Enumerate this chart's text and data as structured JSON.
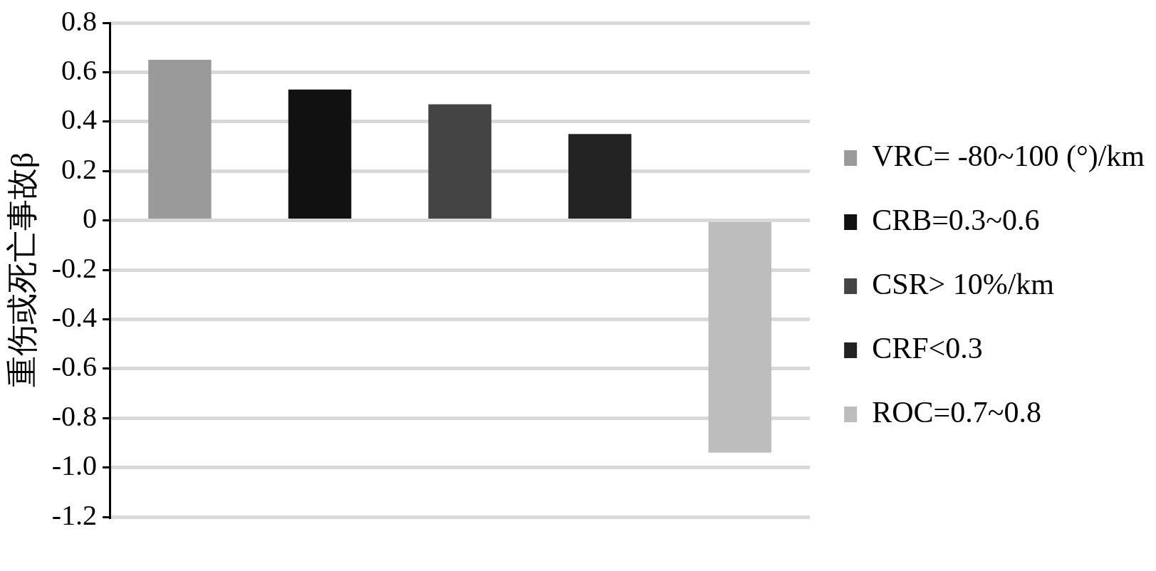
{
  "chart_data": {
    "type": "bar",
    "ylabel": "重伤或死亡事故β",
    "categories": [
      null,
      null,
      null,
      null,
      null
    ],
    "series": [
      {
        "name": "VRC= -80~100 (°)/km",
        "color": "#9a9a9a",
        "values": [
          0.65,
          null,
          null,
          null,
          null
        ]
      },
      {
        "name": "CRB=0.3~0.6",
        "color": "#111111",
        "values": [
          null,
          0.53,
          null,
          null,
          null
        ]
      },
      {
        "name": "CSR> 10%/km",
        "color": "#444444",
        "values": [
          null,
          null,
          0.47,
          null,
          null
        ]
      },
      {
        "name": "CRF<0.3",
        "color": "#222222",
        "values": [
          null,
          null,
          null,
          0.35,
          null
        ]
      },
      {
        "name": "ROC=0.7~0.8",
        "color": "#bdbdbd",
        "values": [
          null,
          null,
          null,
          null,
          -0.94
        ]
      }
    ],
    "ylim": [
      -1.2,
      0.8
    ],
    "yticks": [
      0.8,
      0.6,
      0.4,
      0.2,
      0,
      -0.2,
      -0.4,
      -0.6,
      -0.8,
      {
        "value": -1,
        "label": "-1.0"
      },
      -1.2
    ],
    "grid": "y",
    "legend": "right"
  }
}
